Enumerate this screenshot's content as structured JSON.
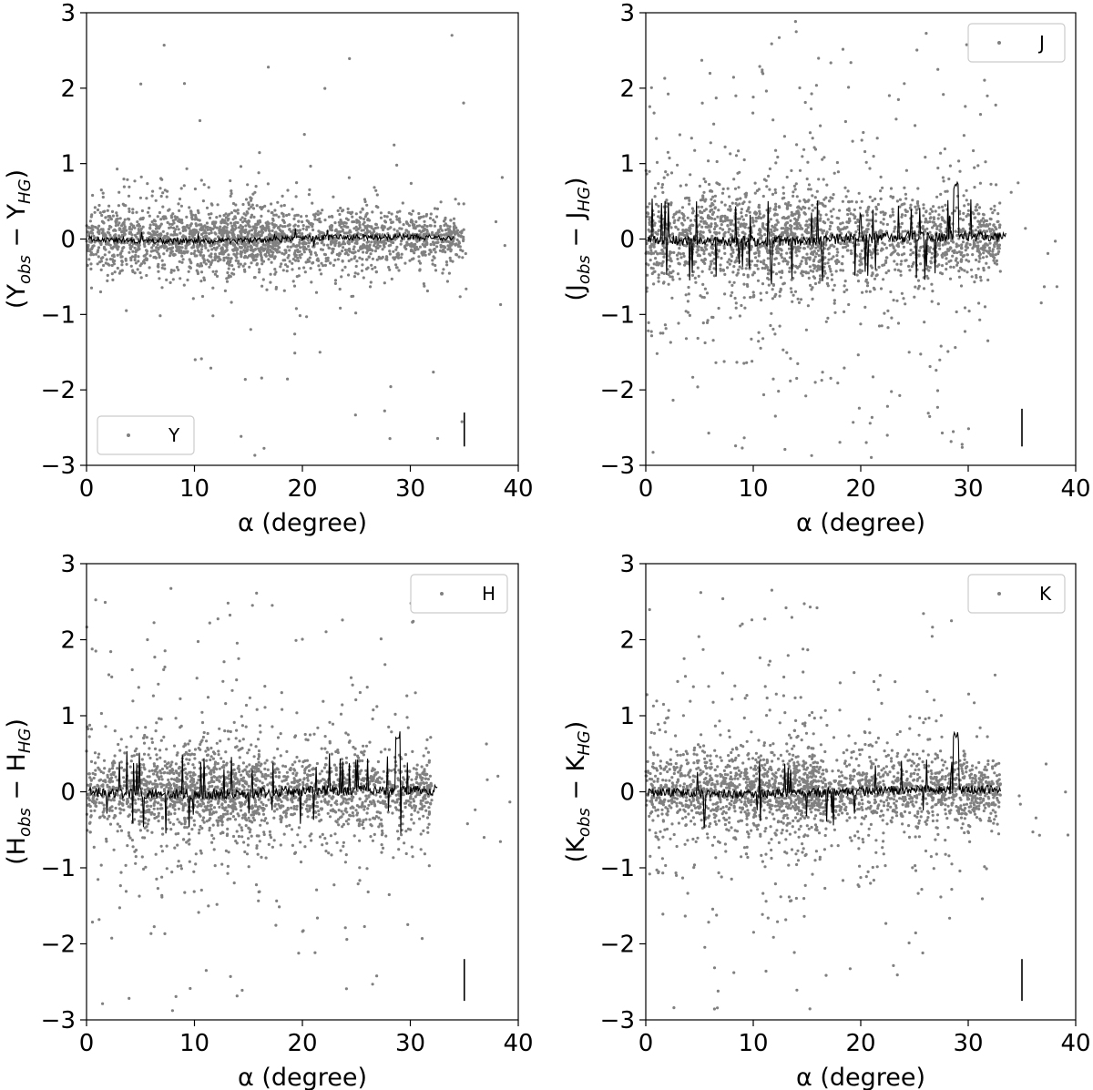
{
  "chart_data": [
    {
      "type": "scatter",
      "xlabel": "α (degree)",
      "ylabel": {
        "base": "(Y",
        "sub1": "obs",
        "mid": " − Y",
        "sub2": "HG",
        "end": ")"
      },
      "xlim": [
        0,
        40
      ],
      "ylim": [
        -3,
        3
      ],
      "xticks": [
        0,
        10,
        20,
        30,
        40
      ],
      "yticks": [
        -3,
        -2,
        -1,
        0,
        1,
        2,
        3
      ],
      "grid": false,
      "legend": {
        "label": "Y",
        "placement": "lower-left"
      },
      "scatter": {
        "name": "Y",
        "color": "#808080",
        "x_range": [
          0,
          35
        ],
        "spread_core": 0.2,
        "spread_wide": 0.4,
        "outlier_frac": 0.02,
        "seed": 11
      },
      "median_line": {
        "color": "#000000",
        "x_end": 34,
        "wiggle": 0.04,
        "spikes": 6,
        "spike_size": 0.12
      },
      "error_bar": {
        "x": 35,
        "y": [
          -2.75,
          -2.3
        ]
      }
    },
    {
      "type": "scatter",
      "xlabel": "α (degree)",
      "ylabel": {
        "base": "(J",
        "sub1": "obs",
        "mid": " − J",
        "sub2": "HG",
        "end": ")"
      },
      "xlim": [
        0,
        40
      ],
      "ylim": [
        -3,
        3
      ],
      "xticks": [
        0,
        10,
        20,
        30,
        40
      ],
      "yticks": [
        -3,
        -2,
        -1,
        0,
        1,
        2,
        3
      ],
      "grid": false,
      "legend": {
        "label": "J",
        "placement": "top-right"
      },
      "scatter": {
        "name": "J",
        "color": "#808080",
        "x_range": [
          0,
          33
        ],
        "spread_core": 0.28,
        "spread_wide": 0.75,
        "outlier_frac": 0.06,
        "seed": 23
      },
      "median_line": {
        "color": "#000000",
        "x_end": 33.5,
        "wiggle": 0.07,
        "spikes": 40,
        "spike_size": 0.6
      },
      "error_bar": {
        "x": 35,
        "y": [
          -2.75,
          -2.25
        ]
      }
    },
    {
      "type": "scatter",
      "xlabel": "α (degree)",
      "ylabel": {
        "base": "(H",
        "sub1": "obs",
        "mid": " − H",
        "sub2": "HG",
        "end": ")"
      },
      "xlim": [
        0,
        40
      ],
      "ylim": [
        -3,
        3
      ],
      "xticks": [
        0,
        10,
        20,
        30,
        40
      ],
      "yticks": [
        -3,
        -2,
        -1,
        0,
        1,
        2,
        3
      ],
      "grid": false,
      "legend": {
        "label": "H",
        "placement": "top-right"
      },
      "scatter": {
        "name": "H",
        "color": "#808080",
        "x_range": [
          0,
          32
        ],
        "spread_core": 0.25,
        "spread_wide": 0.7,
        "outlier_frac": 0.05,
        "seed": 37
      },
      "median_line": {
        "color": "#000000",
        "x_end": 32.5,
        "wiggle": 0.07,
        "spikes": 35,
        "spike_size": 0.55
      },
      "error_bar": {
        "x": 35,
        "y": [
          -2.75,
          -2.2
        ]
      }
    },
    {
      "type": "scatter",
      "xlabel": "α (degree)",
      "ylabel": {
        "base": "(K",
        "sub1": "obs",
        "mid": " − K",
        "sub2": "HG",
        "end": ")"
      },
      "xlim": [
        0,
        40
      ],
      "ylim": [
        -3,
        3
      ],
      "xticks": [
        0,
        10,
        20,
        30,
        40
      ],
      "yticks": [
        -3,
        -2,
        -1,
        0,
        1,
        2,
        3
      ],
      "grid": false,
      "legend": {
        "label": "K",
        "placement": "top-right"
      },
      "scatter": {
        "name": "K",
        "color": "#808080",
        "x_range": [
          0,
          33
        ],
        "spread_core": 0.25,
        "spread_wide": 0.7,
        "outlier_frac": 0.05,
        "seed": 51
      },
      "median_line": {
        "color": "#000000",
        "x_end": 33,
        "wiggle": 0.06,
        "spikes": 20,
        "spike_size": 0.45
      },
      "error_bar": {
        "x": 35,
        "y": [
          -2.75,
          -2.2
        ]
      }
    }
  ]
}
